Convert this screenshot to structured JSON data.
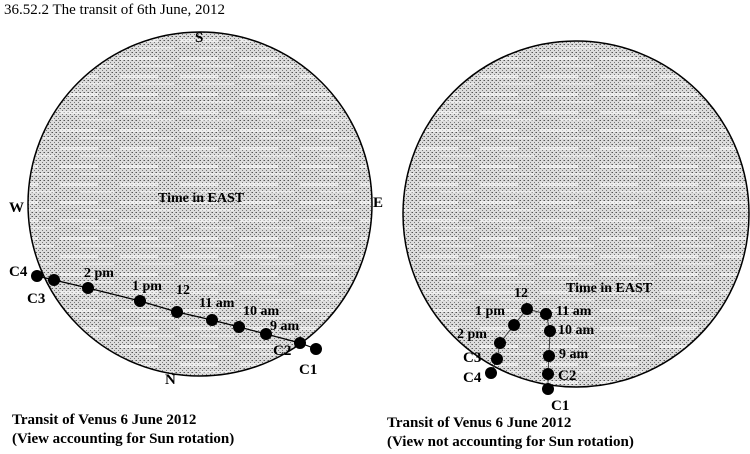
{
  "title": "36.52.2 The transit of 6th June, 2012",
  "left_panel": {
    "compass": {
      "north": "N",
      "south": "S",
      "east": "E",
      "west": "W"
    },
    "time_zone_label": "Time in EAST",
    "contacts": {
      "c1": "C1",
      "c2": "C2",
      "c3": "C3",
      "c4": "C4"
    },
    "times": {
      "t9": "9 am",
      "t10": "10 am",
      "t11": "11 am",
      "t12": "12",
      "t13": "1 pm",
      "t14": "2 pm"
    },
    "caption_line1": "Transit of Venus 6 June 2012",
    "caption_line2": "(View accounting for Sun rotation)"
  },
  "right_panel": {
    "time_zone_label": "Time in EAST",
    "contacts": {
      "c1": "C1",
      "c2": "C2",
      "c3": "C3",
      "c4": "C4"
    },
    "times": {
      "t9": "9 am",
      "t10": "10 am",
      "t11": "11 am",
      "t12": "12",
      "t13": "1 pm",
      "t14": "2 pm"
    },
    "caption_line1": "Transit of Venus 6 June 2012",
    "caption_line2": "(View not accounting for Sun rotation)"
  },
  "colors": {
    "disk_fill": "#d4d4d4",
    "ink": "#000000",
    "background": "#ffffff"
  }
}
